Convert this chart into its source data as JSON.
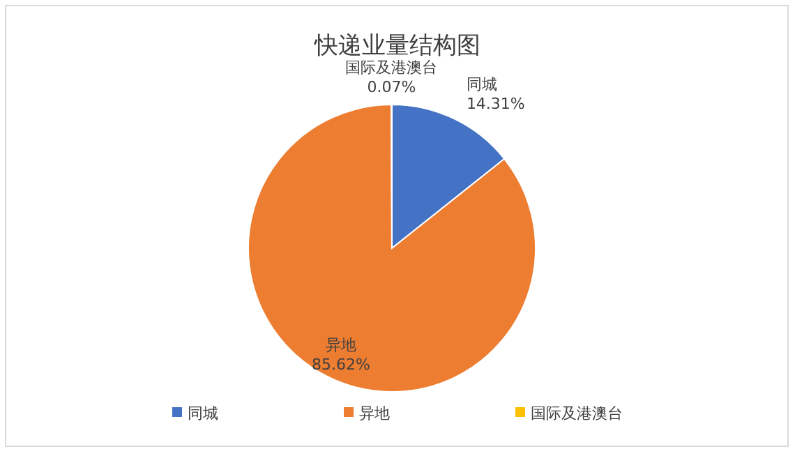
{
  "chart_data": {
    "type": "pie",
    "title": "快递业量结构图",
    "categories": [
      "同城",
      "异地",
      "国际及港澳台"
    ],
    "values": [
      14.31,
      85.62,
      0.07
    ],
    "value_labels": [
      "14.31%",
      "85.62%",
      "0.07%"
    ],
    "colors": [
      "#4472c4",
      "#ed7d31",
      "#ffc000"
    ],
    "legend": "bottom"
  }
}
